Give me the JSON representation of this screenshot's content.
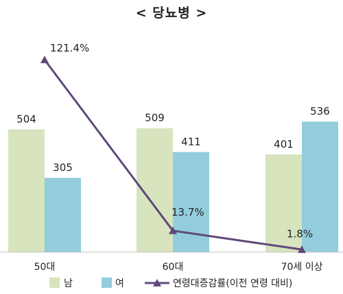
{
  "chart_data": {
    "type": "bar",
    "title": "< 당뇨병 >",
    "categories": [
      "50대",
      "60대",
      "70세 이상"
    ],
    "series": [
      {
        "name": "남",
        "kind": "bar",
        "color": "#d7e4bd",
        "values": [
          504,
          509,
          401
        ],
        "labels": [
          "504",
          "509",
          "401"
        ]
      },
      {
        "name": "여",
        "kind": "bar",
        "color": "#93cddd",
        "values": [
          305,
          411,
          536
        ],
        "labels": [
          "305",
          "411",
          "536"
        ]
      },
      {
        "name": "연령대증감률(이전 연령 대비)",
        "kind": "line",
        "color": "#5f497a",
        "values": [
          121.4,
          13.7,
          1.8
        ],
        "labels": [
          "121.4%",
          "13.7%",
          "1.8%"
        ]
      }
    ],
    "bar_axis": {
      "range": [
        0,
        900
      ]
    },
    "line_axis": {
      "range": [
        -5,
        140
      ]
    },
    "legend_position": "bottom",
    "grid": false
  }
}
